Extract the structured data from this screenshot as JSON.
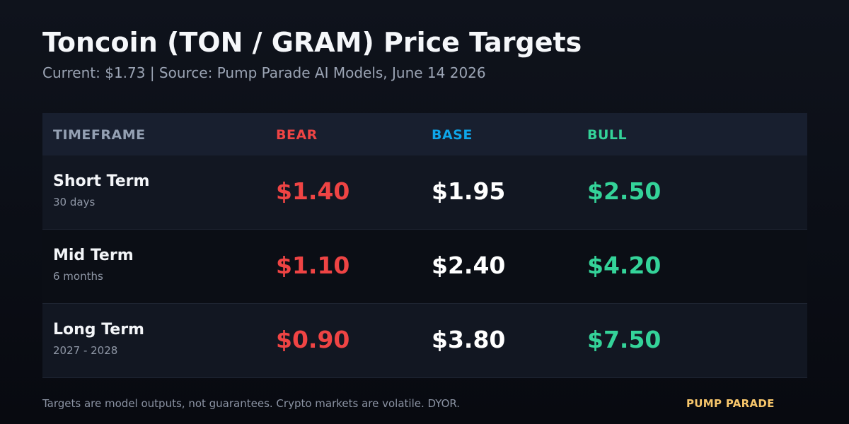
{
  "header": {
    "title": "Toncoin (TON / GRAM) Price Targets",
    "subtitle": "Current: $1.73  |  Source: Pump Parade AI Models, June 14 2026"
  },
  "table": {
    "columns": [
      "TIMEFRAME",
      "BEAR",
      "BASE",
      "BULL"
    ],
    "rows": [
      {
        "name": "Short Term",
        "period": "30 days",
        "bear": "$1.40",
        "base": "$1.95",
        "bull": "$2.50"
      },
      {
        "name": "Mid Term",
        "period": "6 months",
        "bear": "$1.10",
        "base": "$2.40",
        "bull": "$4.20"
      },
      {
        "name": "Long Term",
        "period": "2027 - 2028",
        "bear": "$0.90",
        "base": "$3.80",
        "bull": "$7.50"
      }
    ]
  },
  "footer": {
    "note": "Targets are model outputs, not guarantees. Crypto markets are volatile. DYOR.",
    "brand": "PUMP PARADE"
  },
  "colors": {
    "timeframe_header": "#94a0b3",
    "bear": "#ef4444",
    "base_header": "#0ea5e9",
    "base_value": "#ffffff",
    "bull": "#34d399",
    "brand": "#f7c66b"
  }
}
